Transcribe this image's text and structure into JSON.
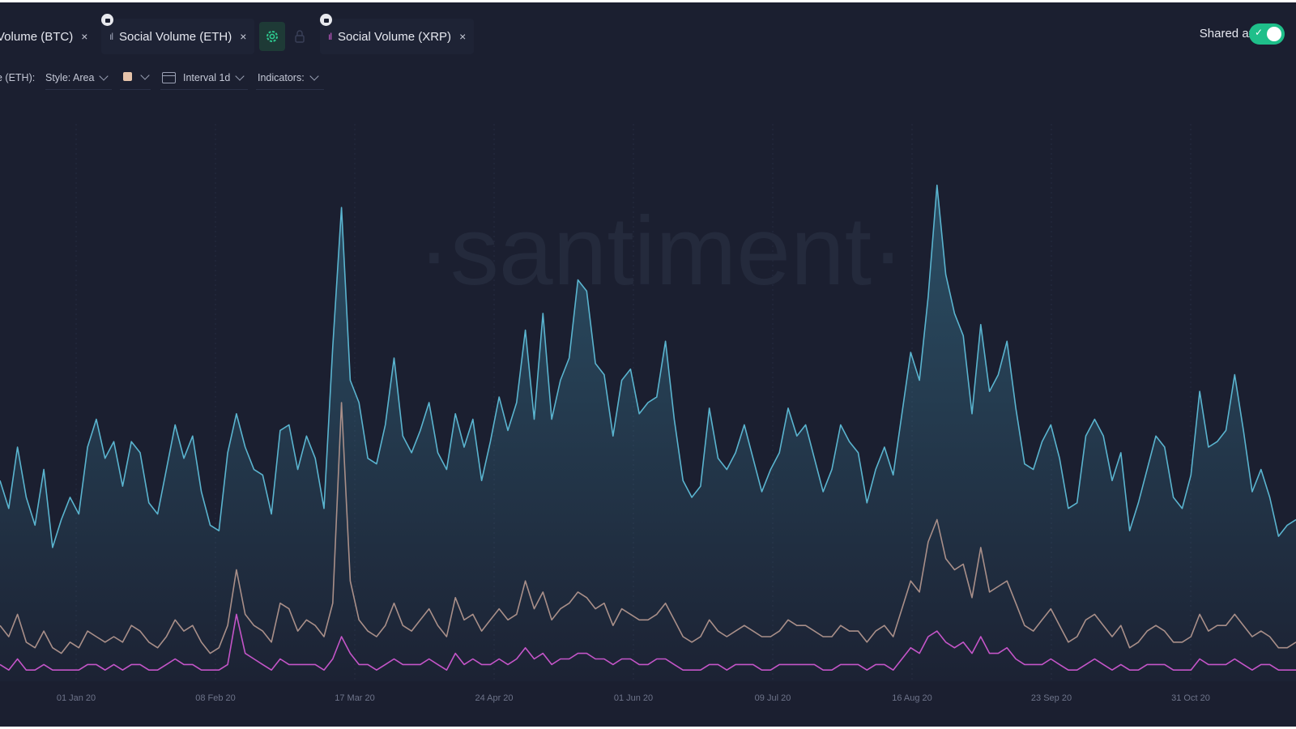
{
  "tabs": [
    {
      "label": "Volume (BTC)",
      "locked": false
    },
    {
      "label": "Social Volume (ETH)",
      "locked": true
    },
    {
      "label": "Social Volume (XRP)",
      "locked": true
    }
  ],
  "close_glyph": "×",
  "toolbar": {
    "series_label": "e (ETH):",
    "style_label": "Style: Area",
    "color_swatch": "#e6c3aa",
    "interval_label": "Interval 1d",
    "indicators_label": "Indicators:"
  },
  "shared_axis": {
    "label": "Shared axis",
    "enabled": true
  },
  "icons": [
    "gear-icon",
    "lock-icon",
    "bar-chart-icon",
    "close-icon",
    "chevron-down-icon",
    "interval-icon",
    "check-icon"
  ],
  "watermark": "·santiment·",
  "colors": {
    "background": "#1b1f30",
    "eth": "#5ab4cf",
    "btc": "#a98f89",
    "xrp": "#c455c8",
    "accent": "#1fbf8a"
  },
  "chart_data": {
    "type": "line",
    "x_ticks": [
      "01 Jan 20",
      "08 Feb 20",
      "17 Mar 20",
      "24 Apr 20",
      "01 Jun 20",
      "09 Jul 20",
      "16 Aug 20",
      "23 Sep 20",
      "31 Oct 20"
    ],
    "ylim": [
      0,
      100
    ],
    "grid": true,
    "series": [
      {
        "name": "Social Volume (ETH)",
        "color": "#5ab4cf",
        "style": "area",
        "values": [
          36,
          31,
          42,
          33,
          28,
          38,
          24,
          29,
          33,
          30,
          42,
          47,
          40,
          43,
          35,
          43,
          41,
          32,
          30,
          38,
          46,
          40,
          44,
          34,
          28,
          27,
          41,
          48,
          42,
          38,
          37,
          30,
          45,
          46,
          38,
          44,
          40,
          31,
          60,
          85,
          54,
          50,
          40,
          39,
          46,
          58,
          44,
          41,
          45,
          50,
          41,
          38,
          48,
          42,
          47,
          36,
          43,
          51,
          45,
          50,
          63,
          47,
          66,
          47,
          54,
          58,
          72,
          70,
          57,
          55,
          44,
          54,
          56,
          48,
          50,
          51,
          61,
          47,
          36,
          33,
          35,
          49,
          40,
          38,
          41,
          46,
          40,
          34,
          38,
          41,
          49,
          44,
          46,
          40,
          34,
          38,
          46,
          43,
          41,
          32,
          38,
          42,
          37,
          48,
          59,
          54,
          69,
          89,
          73,
          66,
          62,
          48,
          64,
          52,
          55,
          61,
          49,
          39,
          38,
          43,
          46,
          40,
          31,
          32,
          44,
          47,
          44,
          36,
          41,
          27,
          32,
          38,
          44,
          42,
          33,
          31,
          37,
          52,
          42,
          43,
          45,
          55,
          45,
          34,
          38,
          33,
          26,
          28,
          29
        ]
      },
      {
        "name": "Social Volume (BTC)",
        "color": "#a98f89",
        "style": "line",
        "values": [
          10,
          8,
          12,
          7,
          6,
          9,
          6,
          5,
          7,
          6,
          9,
          8,
          7,
          8,
          7,
          10,
          9,
          7,
          6,
          8,
          11,
          9,
          10,
          7,
          5,
          6,
          10,
          20,
          12,
          10,
          9,
          7,
          14,
          13,
          9,
          11,
          10,
          8,
          14,
          50,
          18,
          11,
          9,
          8,
          10,
          14,
          10,
          9,
          11,
          13,
          10,
          8,
          15,
          11,
          12,
          9,
          11,
          13,
          11,
          12,
          18,
          13,
          16,
          11,
          13,
          14,
          16,
          15,
          13,
          14,
          10,
          13,
          12,
          11,
          11,
          12,
          14,
          11,
          8,
          7,
          8,
          11,
          9,
          8,
          9,
          10,
          9,
          8,
          8,
          9,
          11,
          10,
          10,
          9,
          8,
          8,
          10,
          9,
          9,
          7,
          9,
          10,
          8,
          13,
          18,
          16,
          25,
          29,
          22,
          20,
          21,
          15,
          24,
          16,
          17,
          18,
          14,
          10,
          9,
          11,
          13,
          10,
          7,
          8,
          11,
          12,
          10,
          8,
          10,
          6,
          7,
          9,
          10,
          9,
          7,
          7,
          8,
          12,
          9,
          10,
          10,
          12,
          10,
          8,
          9,
          8,
          6,
          6,
          7
        ]
      },
      {
        "name": "Social Volume (XRP)",
        "color": "#c455c8",
        "style": "line",
        "values": [
          3,
          2,
          4,
          2,
          2,
          3,
          2,
          2,
          2,
          2,
          3,
          3,
          2,
          3,
          2,
          3,
          3,
          2,
          2,
          3,
          4,
          3,
          3,
          2,
          2,
          2,
          3,
          12,
          5,
          4,
          3,
          2,
          4,
          3,
          3,
          3,
          3,
          2,
          4,
          8,
          5,
          3,
          3,
          2,
          3,
          4,
          3,
          3,
          3,
          4,
          3,
          2,
          5,
          3,
          4,
          3,
          3,
          4,
          3,
          4,
          6,
          4,
          5,
          3,
          4,
          4,
          5,
          5,
          4,
          4,
          3,
          4,
          4,
          3,
          3,
          4,
          4,
          3,
          2,
          2,
          2,
          3,
          3,
          2,
          3,
          3,
          3,
          2,
          2,
          3,
          3,
          3,
          3,
          3,
          2,
          2,
          3,
          3,
          3,
          2,
          3,
          3,
          2,
          4,
          6,
          5,
          8,
          9,
          7,
          6,
          7,
          5,
          8,
          5,
          5,
          6,
          4,
          3,
          3,
          3,
          4,
          3,
          2,
          2,
          3,
          4,
          3,
          2,
          3,
          2,
          2,
          3,
          3,
          3,
          2,
          2,
          2,
          4,
          3,
          3,
          3,
          4,
          3,
          2,
          3,
          3,
          2,
          2,
          2
        ]
      }
    ]
  }
}
